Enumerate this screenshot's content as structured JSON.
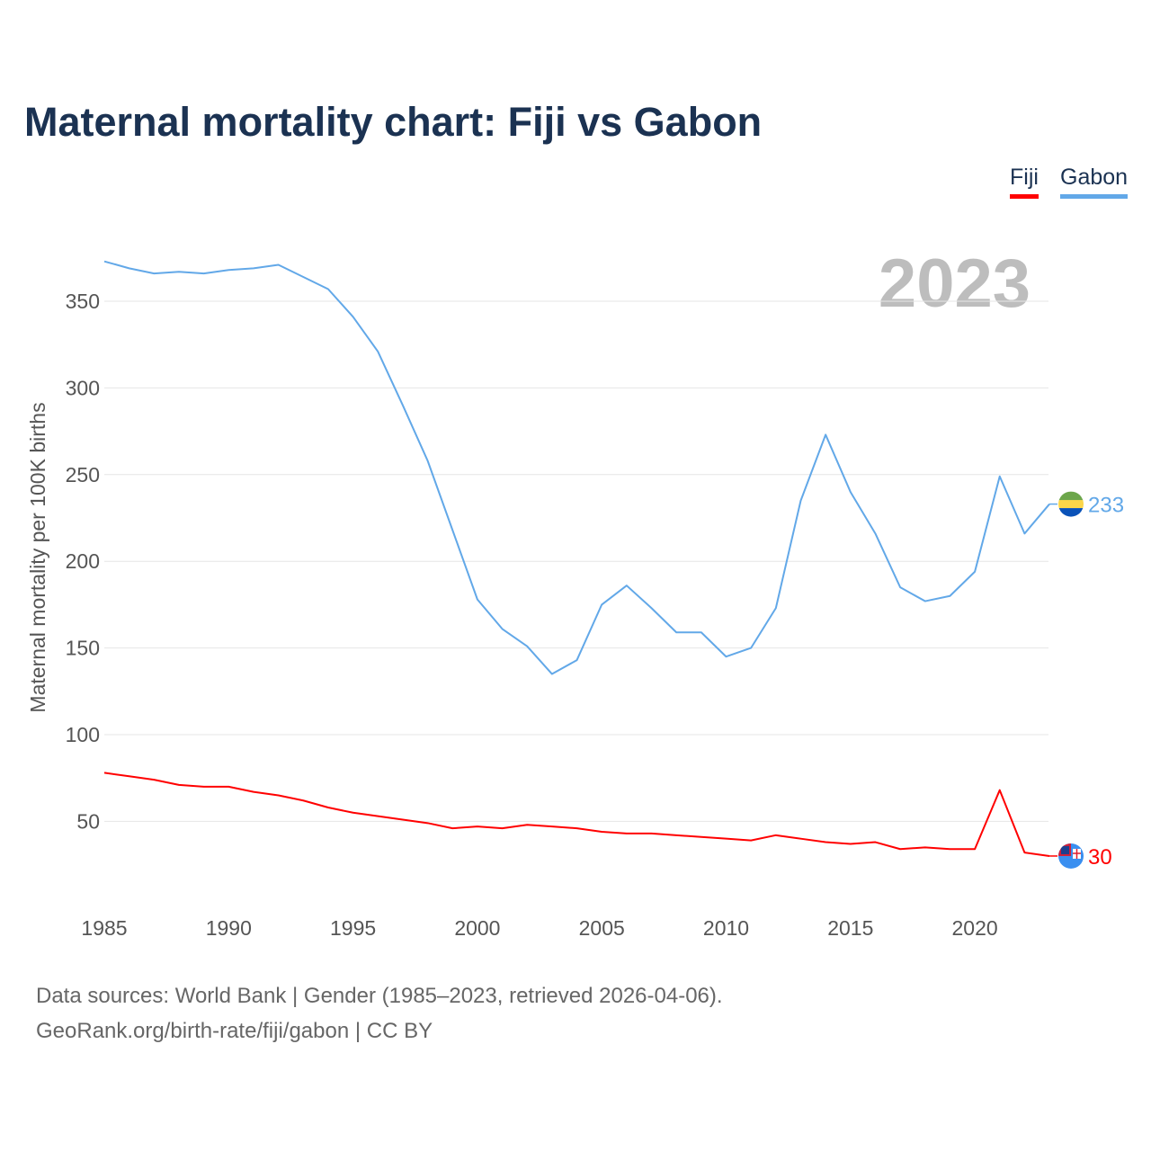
{
  "title": "Maternal mortality chart: Fiji vs Gabon",
  "legend": [
    {
      "label": "Fiji",
      "color": "#ff0000"
    },
    {
      "label": "Gabon",
      "color": "#62a8e8"
    }
  ],
  "year_watermark": "2023",
  "footer": {
    "line1": "Data sources: World Bank | Gender (1985–2023, retrieved 2026-04-06).",
    "line2": "GeoRank.org/birth-rate/fiji/gabon | CC BY"
  },
  "chart_data": {
    "type": "line",
    "title": "Maternal mortality chart: Fiji vs Gabon",
    "xlabel": "",
    "ylabel": "Maternal mortality per 100K births",
    "xlim": [
      1985,
      2023
    ],
    "ylim": [
      0,
      380
    ],
    "x_ticks": [
      1985,
      1990,
      1995,
      2000,
      2005,
      2010,
      2015,
      2020
    ],
    "y_ticks": [
      50,
      100,
      150,
      200,
      250,
      300,
      350
    ],
    "grid": true,
    "legend_position": "top-right",
    "x": [
      1985,
      1986,
      1987,
      1988,
      1989,
      1990,
      1991,
      1992,
      1993,
      1994,
      1995,
      1996,
      1997,
      1998,
      1999,
      2000,
      2001,
      2002,
      2003,
      2004,
      2005,
      2006,
      2007,
      2008,
      2009,
      2010,
      2011,
      2012,
      2013,
      2014,
      2015,
      2016,
      2017,
      2018,
      2019,
      2020,
      2021,
      2022,
      2023
    ],
    "series": [
      {
        "name": "Fiji",
        "color": "#ff0000",
        "end_label": "30",
        "flag": "fiji-flag",
        "values": [
          78,
          76,
          74,
          71,
          70,
          70,
          67,
          65,
          62,
          58,
          55,
          53,
          51,
          49,
          46,
          47,
          46,
          48,
          47,
          46,
          44,
          43,
          43,
          42,
          41,
          40,
          39,
          42,
          40,
          38,
          37,
          38,
          34,
          35,
          34,
          34,
          68,
          32,
          30
        ]
      },
      {
        "name": "Gabon",
        "color": "#62a8e8",
        "end_label": "233",
        "flag": "gabon-flag",
        "values": [
          373,
          369,
          366,
          367,
          366,
          368,
          369,
          371,
          364,
          357,
          341,
          321,
          290,
          258,
          218,
          178,
          161,
          151,
          135,
          143,
          175,
          186,
          173,
          159,
          159,
          145,
          150,
          173,
          235,
          273,
          240,
          216,
          185,
          177,
          180,
          194,
          249,
          216,
          233
        ]
      }
    ]
  }
}
